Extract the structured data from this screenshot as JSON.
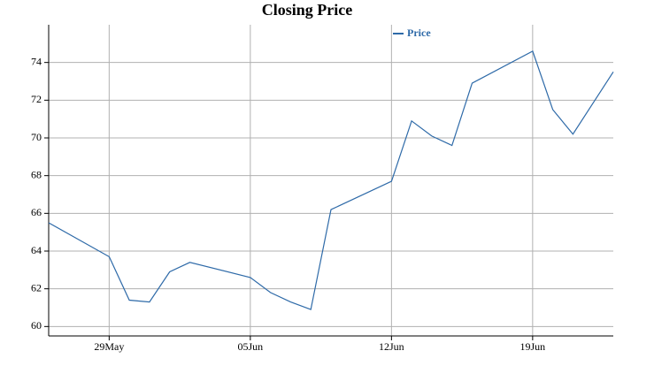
{
  "chart_data": {
    "type": "line",
    "title": "Closing Price",
    "x": [
      "26May",
      "29May",
      "30May",
      "31May",
      "01Jun",
      "02Jun",
      "05Jun",
      "06Jun",
      "07Jun",
      "08Jun",
      "09Jun",
      "12Jun",
      "13Jun",
      "14Jun",
      "15Jun",
      "16Jun",
      "19Jun",
      "20Jun",
      "21Jun",
      "23Jun"
    ],
    "series": [
      {
        "name": "Price",
        "color": "#2e6aa8",
        "values": [
          65.5,
          63.7,
          61.4,
          61.3,
          62.9,
          63.4,
          62.6,
          61.8,
          61.3,
          60.9,
          66.2,
          67.7,
          70.9,
          70.1,
          69.6,
          72.9,
          74.6,
          71.5,
          70.2,
          73.5
        ]
      }
    ],
    "xlim": [
      "26May",
      "23Jun"
    ],
    "xticks": [
      "29May",
      "05Jun",
      "12Jun",
      "19Jun"
    ],
    "ylim": [
      59.5,
      76
    ],
    "yticks": [
      60,
      62,
      64,
      66,
      68,
      70,
      72,
      74
    ],
    "grid": true,
    "legend": "top"
  }
}
